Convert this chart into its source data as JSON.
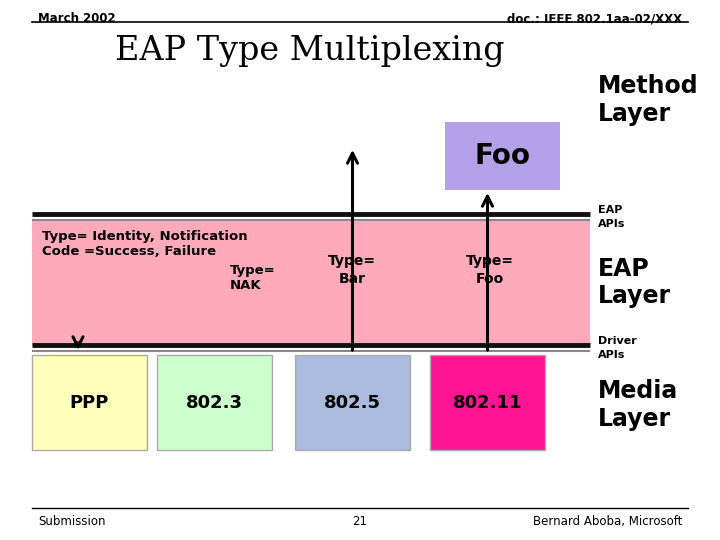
{
  "title": "EAP Type Multiplexing",
  "header_left": "March 2002",
  "header_right": "doc.: IEEE 802.1aa-02/XXX",
  "footer_left": "Submission",
  "footer_center": "21",
  "footer_right": "Bernard Aboba, Microsoft",
  "bg_color": "#ffffff",
  "foo_box_color": "#b3a0e8",
  "foo_text": "Foo",
  "eap_layer_bg": "#ffaabb",
  "ppp_color": "#ffffbb",
  "b803_color": "#ccffcc",
  "b805_color": "#aabbdd",
  "b8011_color": "#ff1493",
  "line_color_dark": "#222222",
  "line_color_gray": "#888888"
}
